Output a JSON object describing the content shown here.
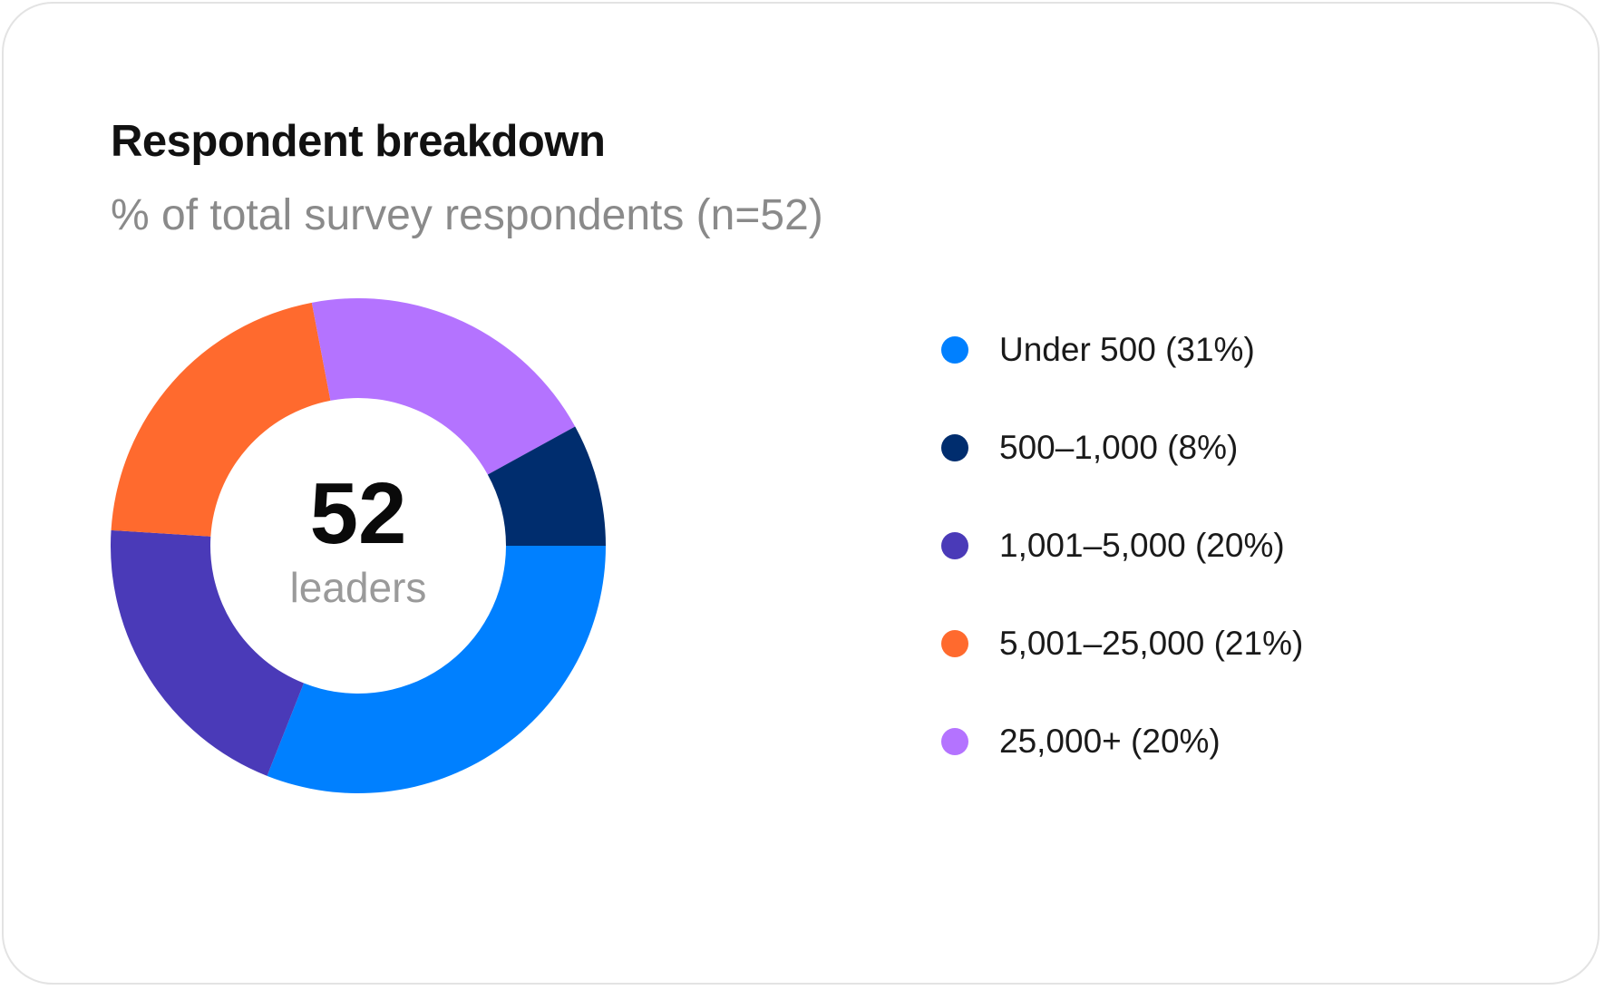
{
  "chart_data": {
    "type": "pie",
    "title": "Respondent breakdown",
    "subtitle": "% of total survey respondents (n=52)",
    "center": {
      "value": "52",
      "label": "leaders"
    },
    "categories": [
      "Under 500",
      "500–1,000",
      "1,001–5,000",
      "5,001–25,000",
      "25,000+"
    ],
    "values": [
      31,
      8,
      20,
      21,
      20
    ],
    "legend_labels": [
      "Under 500 (31%)",
      "500–1,000 (8%)",
      "1,001–5,000 (20%)",
      "5,001–25,000 (21%)",
      "25,000+ (20%)"
    ],
    "colors": [
      "#0080ff",
      "#002d6e",
      "#4a3ab8",
      "#ff6a2e",
      "#b473ff"
    ],
    "legend_position": "right"
  }
}
